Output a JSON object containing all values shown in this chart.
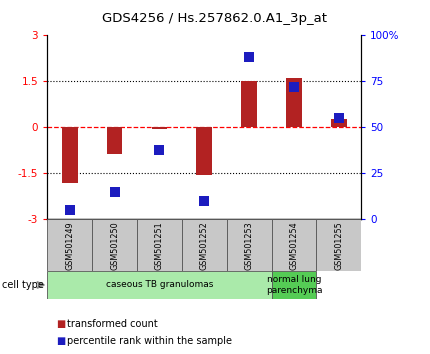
{
  "title": "GDS4256 / Hs.257862.0.A1_3p_at",
  "samples": [
    "GSM501249",
    "GSM501250",
    "GSM501251",
    "GSM501252",
    "GSM501253",
    "GSM501254",
    "GSM501255"
  ],
  "transformed_count": [
    -1.82,
    -0.85,
    -0.05,
    -1.55,
    1.5,
    1.62,
    0.28
  ],
  "percentile_rank": [
    5,
    15,
    38,
    10,
    88,
    72,
    55
  ],
  "ylim_left": [
    -3,
    3
  ],
  "ylim_right": [
    0,
    100
  ],
  "yticks_left": [
    -3,
    -1.5,
    0,
    1.5,
    3
  ],
  "yticks_right": [
    0,
    25,
    50,
    75,
    100
  ],
  "ytick_labels_right": [
    "0",
    "25",
    "50",
    "75",
    "100%"
  ],
  "bar_color": "#B22222",
  "dot_color": "#1C1CBF",
  "bar_width": 0.35,
  "dot_size": 55,
  "cell_type_groups": [
    {
      "label": "caseous TB granulomas",
      "start": 0,
      "end": 5,
      "color": "#AAEAAA"
    },
    {
      "label": "normal lung\nparenchyma",
      "start": 5,
      "end": 6,
      "color": "#55CC55"
    }
  ],
  "legend_items": [
    {
      "color": "#B22222",
      "label": "transformed count"
    },
    {
      "color": "#1C1CBF",
      "label": "percentile rank within the sample"
    }
  ],
  "background_color": "#ffffff",
  "sample_box_color": "#C8C8C8"
}
